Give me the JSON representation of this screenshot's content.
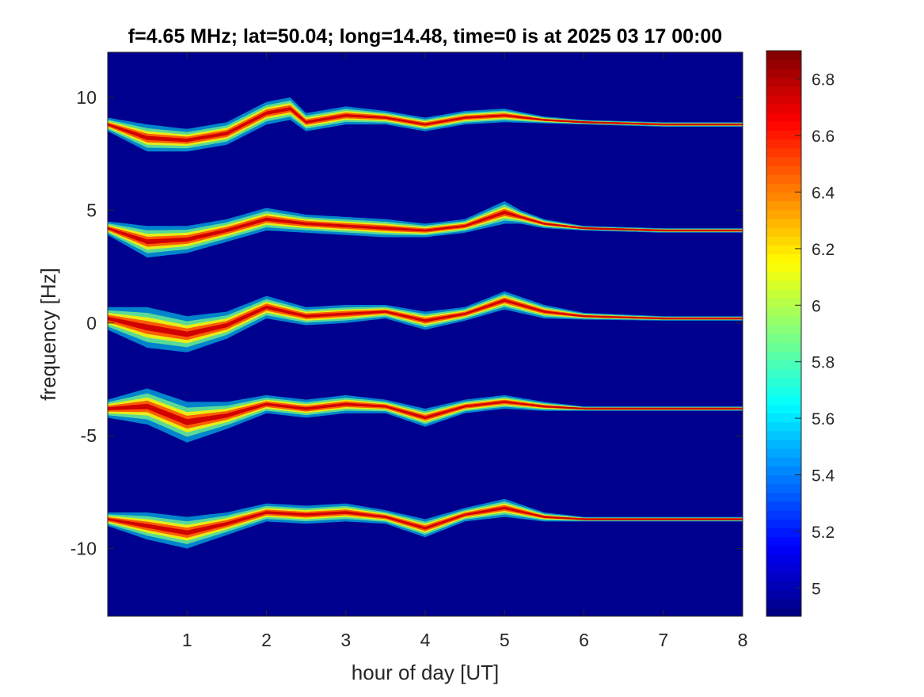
{
  "chart_data": {
    "type": "heatmap",
    "title": "f=4.65 MHz;  lat=50.04; long=14.48, time=0 is at 2025 03 17 00:00",
    "xlabel": "hour of day [UT]",
    "ylabel": "frequency [Hz]",
    "xlim": [
      0,
      8
    ],
    "ylim": [
      -13,
      12
    ],
    "x_ticks": [
      1,
      2,
      3,
      4,
      5,
      6,
      7,
      8
    ],
    "y_ticks": [
      -10,
      -5,
      0,
      5,
      10
    ],
    "colorbar": {
      "colormap": "jet",
      "range": [
        4.9,
        6.9
      ],
      "ticks": [
        5,
        5.2,
        5.4,
        5.6,
        5.8,
        6,
        6.2,
        6.4,
        6.6,
        6.8
      ]
    },
    "background_color": "#00008f",
    "grid": false,
    "series": [
      {
        "center": 8.8,
        "x": [
          0,
          0.5,
          1.0,
          1.5,
          2.0,
          2.3,
          2.5,
          3.0,
          3.5,
          4.0,
          4.5,
          5.0,
          5.5,
          6.0,
          7.0,
          8.0
        ],
        "offset": [
          0,
          -0.6,
          -0.7,
          -0.4,
          0.5,
          0.7,
          0.1,
          0.4,
          0.3,
          0.0,
          0.3,
          0.4,
          0.2,
          0.1,
          0.0,
          0.0
        ],
        "width": [
          0.3,
          0.6,
          0.5,
          0.5,
          0.5,
          0.5,
          0.4,
          0.4,
          0.3,
          0.3,
          0.3,
          0.3,
          0.15,
          0.1,
          0.1,
          0.1
        ]
      },
      {
        "center": 4.1,
        "x": [
          0,
          0.5,
          1.0,
          1.5,
          2.0,
          2.5,
          3.0,
          3.5,
          4.0,
          4.5,
          5.0,
          5.2,
          5.5,
          6.0,
          7.0,
          8.0
        ],
        "offset": [
          0.1,
          -0.5,
          -0.4,
          0.0,
          0.5,
          0.3,
          0.2,
          0.1,
          0.0,
          0.2,
          0.8,
          0.6,
          0.3,
          0.1,
          0.0,
          0.0
        ],
        "width": [
          0.3,
          0.7,
          0.6,
          0.5,
          0.5,
          0.4,
          0.4,
          0.4,
          0.3,
          0.3,
          0.5,
          0.3,
          0.2,
          0.1,
          0.1,
          0.1
        ]
      },
      {
        "center": 0.2,
        "x": [
          0,
          0.5,
          1.0,
          1.5,
          2.0,
          2.5,
          3.0,
          3.5,
          4.0,
          4.5,
          5.0,
          5.5,
          6.0,
          7.0,
          8.0
        ],
        "offset": [
          0,
          -0.4,
          -0.7,
          -0.3,
          0.5,
          0.1,
          0.2,
          0.3,
          -0.1,
          0.2,
          0.8,
          0.3,
          0.1,
          0.0,
          0.0
        ],
        "width": [
          0.5,
          0.9,
          0.8,
          0.6,
          0.5,
          0.4,
          0.4,
          0.3,
          0.4,
          0.3,
          0.4,
          0.3,
          0.15,
          0.1,
          0.1
        ]
      },
      {
        "center": -3.8,
        "x": [
          0,
          0.5,
          1.0,
          1.5,
          2.0,
          2.5,
          3.0,
          3.5,
          4.0,
          4.5,
          5.0,
          5.5,
          6.0,
          7.0,
          8.0
        ],
        "offset": [
          0,
          0.1,
          -0.6,
          -0.3,
          0.2,
          0.0,
          0.2,
          0.1,
          -0.4,
          0.1,
          0.3,
          0.1,
          0.0,
          0.0,
          0.0
        ],
        "width": [
          0.4,
          0.8,
          0.9,
          0.6,
          0.4,
          0.4,
          0.4,
          0.3,
          0.4,
          0.3,
          0.3,
          0.2,
          0.1,
          0.1,
          0.1
        ]
      },
      {
        "center": -8.7,
        "x": [
          0,
          0.5,
          1.0,
          1.5,
          2.0,
          2.5,
          3.0,
          3.5,
          4.0,
          4.5,
          5.0,
          5.5,
          6.0,
          7.0,
          8.0
        ],
        "offset": [
          0,
          -0.3,
          -0.6,
          -0.2,
          0.3,
          0.2,
          0.3,
          0.1,
          -0.4,
          0.2,
          0.5,
          0.1,
          0.0,
          0.0,
          0.0
        ],
        "width": [
          0.3,
          0.6,
          0.7,
          0.5,
          0.4,
          0.4,
          0.4,
          0.3,
          0.4,
          0.3,
          0.4,
          0.2,
          0.1,
          0.1,
          0.1
        ]
      }
    ]
  }
}
